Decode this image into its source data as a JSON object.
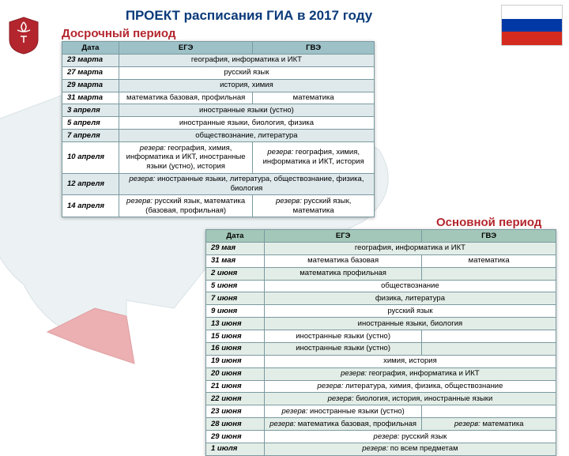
{
  "title": "ПРОЕКТ расписания ГИА в 2017 году",
  "colors": {
    "title": "#0a3a7a",
    "label1": "#b4262e",
    "label2": "#b4262e",
    "header_bg_1": "#9dc1c7",
    "header_bg_2": "#a3c7b9",
    "row_alt_1": "#dfe9eb",
    "row_alt_2": "#e3ede7",
    "flag_white": "#ffffff",
    "flag_blue": "#0039a6",
    "flag_red": "#d52b1e"
  },
  "section1": {
    "label": "Досрочный период",
    "headers": [
      "Дата",
      "ЕГЭ",
      "ГВЭ"
    ],
    "rows": [
      {
        "date": "23 марта",
        "merged": "география, информатика и ИКТ"
      },
      {
        "date": "27 марта",
        "merged": "русский язык"
      },
      {
        "date": "29 марта",
        "merged": "история, химия"
      },
      {
        "date": "31 марта",
        "c1": "математика базовая, профильная",
        "c2": "математика"
      },
      {
        "date": "3 апреля",
        "merged": "иностранные языки (устно)"
      },
      {
        "date": "5 апреля",
        "merged": "иностранные языки, биология, физика"
      },
      {
        "date": "7 апреля",
        "merged": "обществознание, литература"
      },
      {
        "date": "10 апреля",
        "c1": "<i>резерв:</i> география, химия, информатика и ИКТ, иностранные языки (устно), история",
        "c2": "<i>резерв:</i> география, химия, информатика и ИКТ, история"
      },
      {
        "date": "12 апреля",
        "merged": "<i>резерв:</i> иностранные языки, литература, обществознание, физика, биология"
      },
      {
        "date": "14 апреля",
        "c1": "<i>резерв:</i> русский язык, математика (базовая, профильная)",
        "c2": "<i>резерв:</i> русский язык, математика"
      }
    ]
  },
  "section2": {
    "label": "Основной период",
    "headers": [
      "Дата",
      "ЕГЭ",
      "ГВЭ"
    ],
    "rows": [
      {
        "date": "29 мая",
        "merged": "география, информатика и ИКТ"
      },
      {
        "date": "31 мая",
        "c1": "математика базовая",
        "c2": "математика"
      },
      {
        "date": "2 июня",
        "c1": "математика профильная",
        "c2": ""
      },
      {
        "date": "5 июня",
        "merged": "обществознание"
      },
      {
        "date": "7 июня",
        "merged": "физика, литература"
      },
      {
        "date": "9 июня",
        "merged": "русский язык"
      },
      {
        "date": "13 июня",
        "merged": "иностранные языки, биология"
      },
      {
        "date": "15 июня",
        "c1": "иностранные языки (устно)",
        "c2": ""
      },
      {
        "date": "16 июня",
        "c1": "иностранные языки (устно)",
        "c2": ""
      },
      {
        "date": "19 июня",
        "merged": "химия, история"
      },
      {
        "date": "20 июня",
        "merged": "<i>резерв:</i> география, информатика и ИКТ"
      },
      {
        "date": "21 июня",
        "merged": "<i>резерв:</i> литература, химия, физика, обществознание"
      },
      {
        "date": "22 июня",
        "merged": "<i>резерв:</i> биология, история, иностранные языки"
      },
      {
        "date": "23 июня",
        "c1": "<i>резерв:</i> иностранные языки (устно)",
        "c2": ""
      },
      {
        "date": "28 июня",
        "c1": "<i>резерв:</i> математика базовая, профильная",
        "c2": "<i>резерв:</i> математика"
      },
      {
        "date": "29 июня",
        "merged": "<i>резерв:</i> русский язык"
      },
      {
        "date": "1 июля",
        "merged": "<i>резерв:</i> по всем предметам"
      }
    ]
  }
}
